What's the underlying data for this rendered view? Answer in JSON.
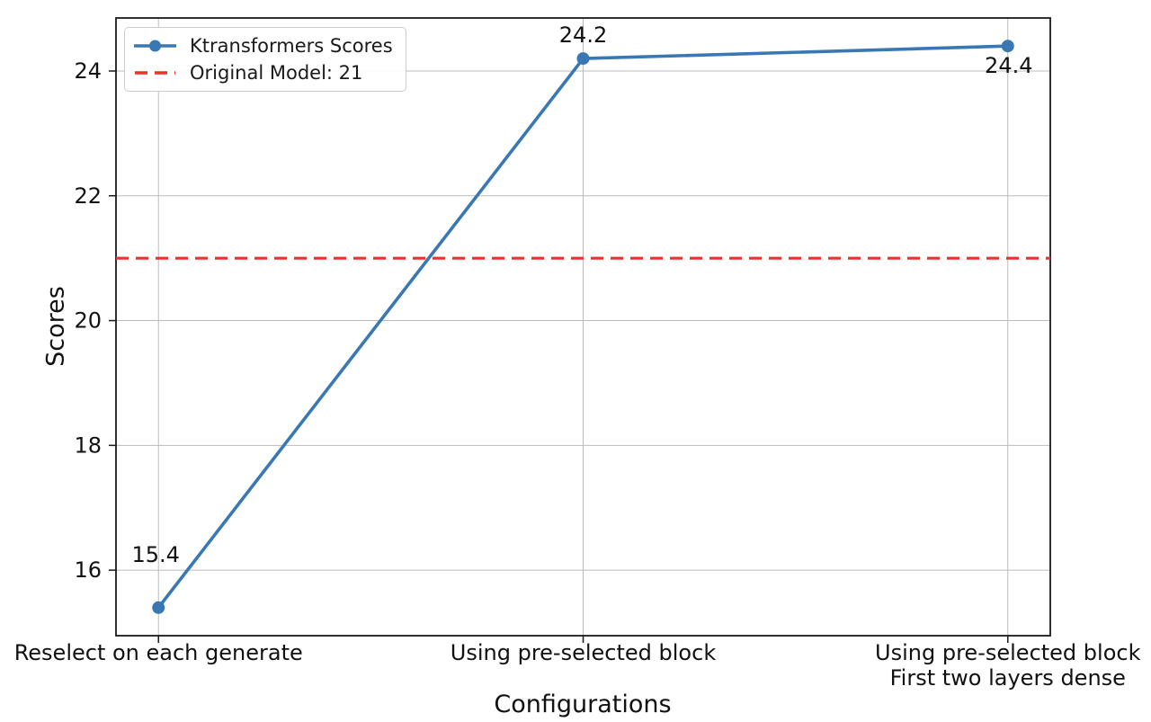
{
  "chart_data": {
    "type": "line",
    "title": "",
    "xlabel": "Configurations",
    "ylabel": "Scores",
    "categories": [
      "Reselect on each generate",
      "Using pre-selected block",
      "Using pre-selected block\nFirst two layers dense"
    ],
    "series": [
      {
        "name": "Ktransformers Scores",
        "values": [
          15.4,
          24.2,
          24.4
        ],
        "color": "#3978b3",
        "marker": "circle",
        "line_style": "solid"
      }
    ],
    "reference_line": {
      "label": "Original Model: 21",
      "value": 21,
      "color": "#e73527",
      "line_style": "dashed"
    },
    "annotations": [
      {
        "text": "15.4",
        "point_index": 0,
        "placement": "above"
      },
      {
        "text": "24.2",
        "point_index": 1,
        "placement": "above"
      },
      {
        "text": "24.4",
        "point_index": 2,
        "placement": "below"
      }
    ],
    "yticks": [
      16,
      18,
      20,
      22,
      24
    ],
    "ylim": [
      14.95,
      24.85
    ],
    "xlim": [
      -0.1,
      2.1
    ],
    "grid": true,
    "grid_color": "#bbbbbb",
    "frame_color": "#1a1a1a",
    "legend_position": "upper-left"
  }
}
